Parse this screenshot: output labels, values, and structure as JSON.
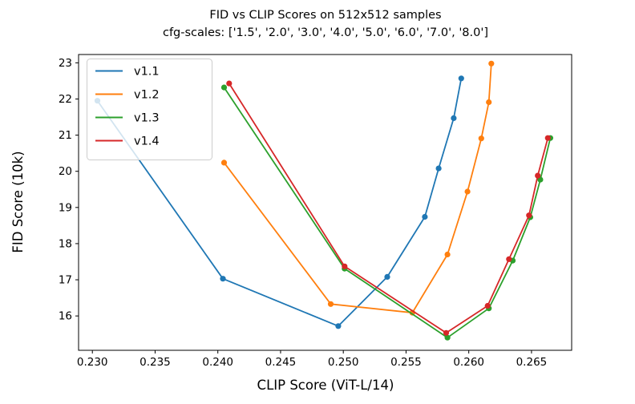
{
  "chart_data": {
    "type": "line",
    "title": "FID vs CLIP Scores on 512x512 samples",
    "subtitle": "cfg-scales: ['1.5', '2.0', '3.0', '4.0', '5.0', '6.0', '7.0', '8.0']",
    "xlabel": "CLIP Score (ViT-L/14)",
    "ylabel": "FID Score (10k)",
    "xlim": [
      0.2289,
      0.2682
    ],
    "ylim": [
      15.05,
      23.23
    ],
    "xticks": [
      0.23,
      0.235,
      0.24,
      0.245,
      0.25,
      0.255,
      0.26,
      0.265
    ],
    "yticks": [
      16,
      17,
      18,
      19,
      20,
      21,
      22,
      23
    ],
    "grid": false,
    "legend_position": "upper-left",
    "cfg_scales": [
      "1.5",
      "2.0",
      "3.0",
      "4.0",
      "5.0",
      "6.0",
      "7.0",
      "8.0"
    ],
    "series": [
      {
        "name": "v1.1",
        "color": "#1f77b4",
        "points": [
          [
            0.2304,
            21.95
          ],
          [
            0.2404,
            17.03
          ],
          [
            0.2496,
            15.72
          ],
          [
            0.2535,
            17.08
          ],
          [
            0.2565,
            18.74
          ],
          [
            0.2576,
            20.08
          ],
          [
            0.2588,
            21.47
          ],
          [
            0.2594,
            22.57
          ]
        ]
      },
      {
        "name": "v1.2",
        "color": "#ff7f0e",
        "points": [
          [
            0.2405,
            20.24
          ],
          [
            0.249,
            16.33
          ],
          [
            0.2555,
            16.09
          ],
          [
            0.2583,
            17.7
          ],
          [
            0.2599,
            19.44
          ],
          [
            0.261,
            20.91
          ],
          [
            0.2616,
            21.91
          ],
          [
            0.2618,
            22.98
          ]
        ]
      },
      {
        "name": "v1.3",
        "color": "#2ca02c",
        "points": [
          [
            0.2405,
            22.32
          ],
          [
            0.2501,
            17.31
          ],
          [
            0.2583,
            15.4
          ],
          [
            0.2616,
            16.21
          ],
          [
            0.2635,
            17.53
          ],
          [
            0.2649,
            18.73
          ],
          [
            0.2657,
            19.77
          ],
          [
            0.2665,
            20.92
          ]
        ]
      },
      {
        "name": "v1.4",
        "color": "#d62728",
        "points": [
          [
            0.2409,
            22.43
          ],
          [
            0.2501,
            17.37
          ],
          [
            0.2582,
            15.53
          ],
          [
            0.2615,
            16.28
          ],
          [
            0.2632,
            17.57
          ],
          [
            0.2648,
            18.78
          ],
          [
            0.2655,
            19.88
          ],
          [
            0.2663,
            20.92
          ]
        ]
      }
    ],
    "style": {
      "spine_color": "#000000",
      "legend_border_color": "#cccccc",
      "legend_bg": "#ffffff",
      "legend_bg_opacity": 0.8
    }
  }
}
